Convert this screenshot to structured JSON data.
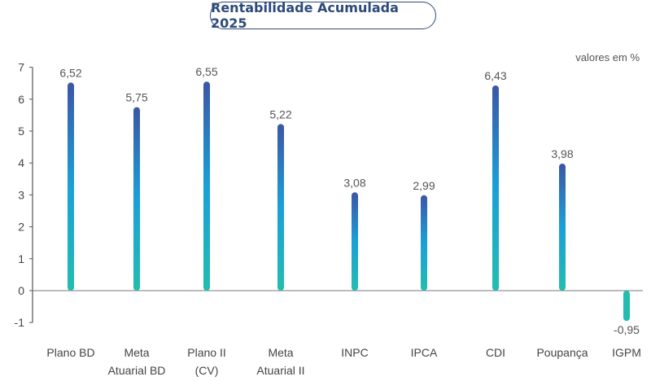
{
  "title": "Rentabilidade Acumulada 2025",
  "unit_label": "valores em %",
  "colors": {
    "bar_top": "#3c56a6",
    "bar_mid": "#1aa0d8",
    "bar_bottom": "#22bdb0",
    "axis": "#555555"
  },
  "chart_data": {
    "type": "bar",
    "title": "Rentabilidade Acumulada 2025",
    "categories": [
      [
        "Plano BD"
      ],
      [
        "Meta",
        "Atuarial BD"
      ],
      [
        "Plano II",
        "(CV)"
      ],
      [
        "Meta",
        "Atuarial II"
      ],
      [
        "INPC"
      ],
      [
        "IPCA"
      ],
      [
        "CDI"
      ],
      [
        "Poupança"
      ],
      [
        "IGPM"
      ]
    ],
    "values": [
      6.52,
      5.75,
      6.55,
      5.22,
      3.08,
      2.99,
      6.43,
      3.98,
      -0.95
    ],
    "value_labels": [
      "6,52",
      "5,75",
      "6,55",
      "5,22",
      "3,08",
      "2,99",
      "6,43",
      "3,98",
      "-0,95"
    ],
    "ylim": [
      -1,
      7
    ],
    "yticks": [
      "-1",
      "0",
      "1",
      "2",
      "3",
      "4",
      "5",
      "6",
      "7"
    ],
    "grid": false,
    "legend": "none"
  }
}
